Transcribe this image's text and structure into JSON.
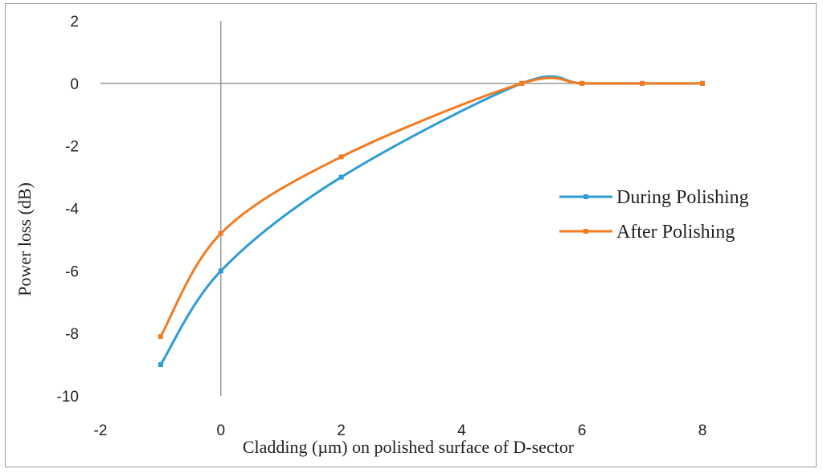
{
  "chart_data": {
    "type": "line",
    "xlabel": "Cladding (µm) on polished surface of D-sector",
    "ylabel": "Power loss (dB)",
    "xlim": [
      -2,
      8
    ],
    "ylim": [
      -10,
      2
    ],
    "xticks": [
      -2,
      0,
      2,
      4,
      6,
      8
    ],
    "yticks": [
      2,
      0,
      -2,
      -4,
      -6,
      -8,
      -10
    ],
    "grid": false,
    "legend_position": "right",
    "series": [
      {
        "name": "During Polishing",
        "color": "#2e9bd6",
        "x": [
          -1,
          0,
          2,
          5,
          6,
          7,
          8
        ],
        "y": [
          -9,
          -6,
          -3,
          0,
          0,
          0,
          0
        ]
      },
      {
        "name": "After Polishing",
        "color": "#f47b20",
        "x": [
          -1,
          0,
          2,
          5,
          6,
          7,
          8
        ],
        "y": [
          -8.1,
          -4.8,
          -2.35,
          0,
          0,
          0,
          0
        ]
      }
    ]
  }
}
